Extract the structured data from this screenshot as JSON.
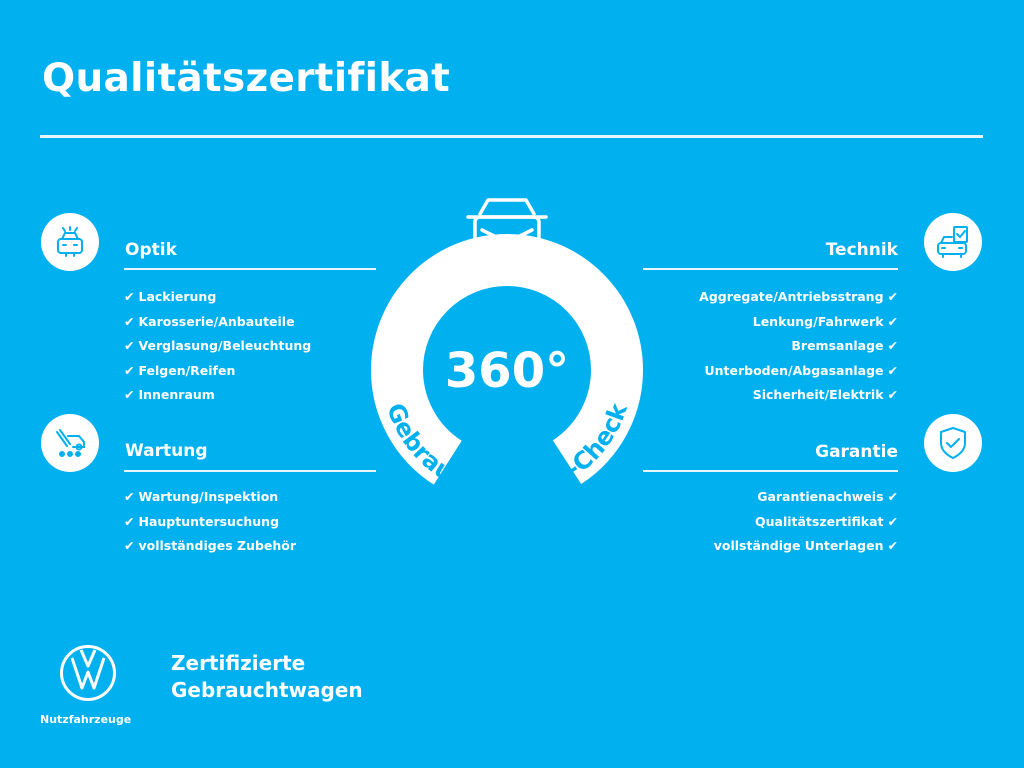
{
  "header": {
    "title": "Qualitätszertifikat"
  },
  "colors": {
    "background": "#00b0ef",
    "foreground": "#ffffff"
  },
  "center_badge": {
    "big_text": "360°",
    "arc_text": "Gebrauchtwagen-Check",
    "icon": "car-rotate-icon"
  },
  "check_symbol": "✔",
  "sections": {
    "optik": {
      "title": "Optik",
      "icon": "car-front-icon",
      "items": [
        "Lackierung",
        "Karosserie/Anbauteile",
        "Verglasung/Beleuchtung",
        "Felgen/Reifen",
        "Innenraum"
      ]
    },
    "wartung": {
      "title": "Wartung",
      "icon": "wrench-van-icon",
      "items": [
        "Wartung/Inspektion",
        "Hauptuntersuchung",
        "vollständiges Zubehör"
      ]
    },
    "technik": {
      "title": "Technik",
      "icon": "car-checklist-icon",
      "items": [
        "Aggregate/Antriebsstrang",
        "Lenkung/Fahrwerk",
        "Bremsanlage",
        "Unterboden/Abgasanlage",
        "Sicherheit/Elektrik"
      ]
    },
    "garantie": {
      "title": "Garantie",
      "icon": "shield-check-icon",
      "items": [
        "Garantienachweis",
        "Qualitätszertifikat",
        "vollständige Unterlagen"
      ]
    }
  },
  "footer": {
    "brand": "Nutzfahrzeuge",
    "logo": "vw-logo",
    "tagline_line1": "Zertifizierte",
    "tagline_line2": "Gebrauchtwagen"
  }
}
